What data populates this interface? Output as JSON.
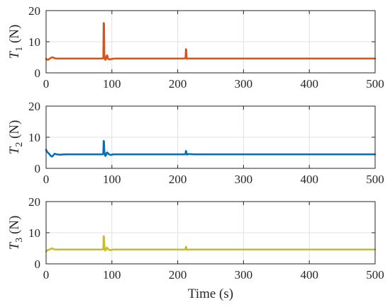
{
  "chart_data": [
    {
      "type": "line",
      "title": "",
      "ylabel_symbol": "T",
      "ylabel_subscript": "1",
      "ylabel_unit": "(N)",
      "xlabel": "",
      "xlim": [
        0,
        500
      ],
      "ylim": [
        0,
        20
      ],
      "xticks": [
        "0",
        "100",
        "200",
        "300",
        "400",
        "500"
      ],
      "yticks": [
        "0",
        "10",
        "20"
      ],
      "grid": true,
      "color": "#D95319",
      "series": [
        {
          "x": [
            0,
            1,
            3,
            5,
            7,
            9,
            11,
            13,
            15,
            20,
            40,
            60,
            80,
            86,
            87,
            87.5,
            88,
            88.5,
            89,
            90,
            91,
            92,
            93,
            94,
            96,
            100,
            105,
            110,
            150,
            200,
            211,
            212,
            212.5,
            213,
            213.5,
            214,
            215,
            220,
            250,
            300,
            350,
            400,
            450,
            500
          ],
          "y": [
            4.5,
            4.3,
            4.2,
            4.5,
            4.8,
            5.0,
            4.9,
            4.7,
            4.6,
            4.6,
            4.6,
            4.6,
            4.6,
            4.6,
            5.0,
            16.0,
            15.8,
            6.0,
            4.5,
            4.2,
            4.4,
            5.5,
            5.6,
            4.6,
            4.3,
            4.5,
            4.6,
            4.6,
            4.6,
            4.6,
            4.6,
            5.0,
            7.6,
            7.5,
            5.0,
            4.5,
            4.6,
            4.6,
            4.6,
            4.6,
            4.6,
            4.6,
            4.6,
            4.6
          ]
        }
      ]
    },
    {
      "type": "line",
      "title": "",
      "ylabel_symbol": "T",
      "ylabel_subscript": "2",
      "ylabel_unit": "(N)",
      "xlabel": "",
      "xlim": [
        0,
        500
      ],
      "ylim": [
        0,
        20
      ],
      "xticks": [
        "0",
        "100",
        "200",
        "300",
        "400",
        "500"
      ],
      "yticks": [
        "0",
        "10",
        "20"
      ],
      "grid": true,
      "color": "#0072BD",
      "series": [
        {
          "x": [
            0,
            1,
            3,
            5,
            7,
            9,
            11,
            13,
            16,
            20,
            30,
            40,
            60,
            80,
            86,
            87,
            87.5,
            88,
            88.5,
            89,
            90,
            91,
            92,
            93,
            95,
            98,
            102,
            110,
            150,
            200,
            211,
            212,
            212.5,
            213,
            213.5,
            214,
            216,
            225,
            250,
            300,
            350,
            400,
            450,
            500
          ],
          "y": [
            6.0,
            5.5,
            5.0,
            4.6,
            4.0,
            3.8,
            4.2,
            4.7,
            4.5,
            4.4,
            4.5,
            4.5,
            4.5,
            4.5,
            4.5,
            5.0,
            8.8,
            8.6,
            5.5,
            4.5,
            4.0,
            4.2,
            5.0,
            5.1,
            4.6,
            4.3,
            4.5,
            4.5,
            4.5,
            4.5,
            4.5,
            4.8,
            5.6,
            5.4,
            4.8,
            4.4,
            4.6,
            4.5,
            4.5,
            4.5,
            4.5,
            4.5,
            4.5,
            4.5
          ]
        }
      ]
    },
    {
      "type": "line",
      "title": "",
      "ylabel_symbol": "T",
      "ylabel_subscript": "3",
      "ylabel_unit": "(N)",
      "xlabel": "Time (s)",
      "xlim": [
        0,
        500
      ],
      "ylim": [
        0,
        20
      ],
      "xticks": [
        "0",
        "100",
        "200",
        "300",
        "400",
        "500"
      ],
      "yticks": [
        "0",
        "10",
        "20"
      ],
      "grid": true,
      "color": "#C9BE1F",
      "series": [
        {
          "x": [
            0,
            1,
            3,
            5,
            7,
            9,
            11,
            13,
            16,
            20,
            40,
            60,
            80,
            86,
            87,
            87.5,
            88,
            88.5,
            89,
            90,
            91,
            92,
            93,
            95,
            98,
            102,
            110,
            150,
            200,
            211,
            212,
            212.5,
            213,
            213.5,
            214,
            216,
            225,
            250,
            300,
            350,
            400,
            450,
            500
          ],
          "y": [
            4.0,
            4.2,
            4.5,
            4.6,
            4.8,
            5.0,
            4.8,
            4.6,
            4.6,
            4.6,
            4.6,
            4.6,
            4.6,
            4.6,
            5.0,
            8.9,
            8.7,
            6.0,
            4.6,
            4.3,
            4.6,
            5.2,
            5.1,
            4.6,
            4.4,
            4.6,
            4.6,
            4.6,
            4.6,
            4.6,
            4.9,
            5.5,
            5.3,
            4.8,
            4.5,
            4.6,
            4.6,
            4.6,
            4.6,
            4.6,
            4.6,
            4.6,
            4.6
          ]
        }
      ]
    }
  ]
}
